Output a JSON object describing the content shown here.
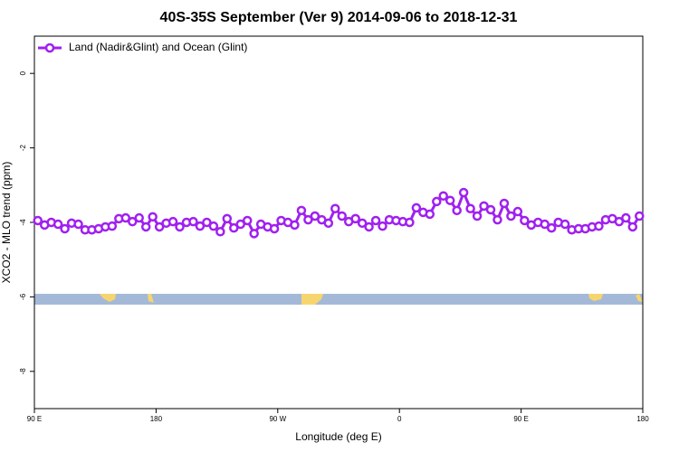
{
  "chart_data": {
    "type": "line",
    "title": "40S-35S September (Ver 9)   2014-09-06 to 2018-12-31",
    "x_label": "Longitude (deg E)",
    "y_label": "XCO2 - MLO trend (ppm)",
    "x": [
      92.5,
      97.5,
      102.5,
      107.5,
      112.5,
      117.5,
      122.5,
      127.5,
      132.5,
      137.5,
      142.5,
      147.5,
      152.5,
      157.5,
      162.5,
      167.5,
      172.5,
      177.5,
      182.5,
      187.5,
      192.5,
      197.5,
      202.5,
      207.5,
      212.5,
      217.5,
      222.5,
      227.5,
      232.5,
      237.5,
      242.5,
      247.5,
      252.5,
      257.5,
      262.5,
      267.5,
      272.5,
      277.5,
      282.5,
      287.5,
      292.5,
      297.5,
      302.5,
      307.5,
      312.5,
      317.5,
      322.5,
      327.5,
      332.5,
      337.5,
      342.5,
      347.5,
      352.5,
      357.5,
      362.5,
      367.5,
      372.5,
      377.5,
      382.5,
      387.5,
      392.5,
      397.5,
      402.5,
      407.5,
      412.5,
      417.5,
      422.5,
      427.5,
      432.5,
      437.5,
      442.5,
      447.5,
      452.5,
      457.5,
      462.5,
      467.5,
      472.5,
      477.5,
      482.5,
      487.5,
      492.5,
      497.5,
      502.5,
      507.5,
      512.5,
      517.5,
      522.5,
      527.5,
      532.5,
      537.5
    ],
    "series": [
      {
        "name": "Land (Nadir&Glint) and Ocean (Glint)",
        "color": "#a020f0",
        "values": [
          -3.95,
          -4.07,
          -4.0,
          -4.05,
          -4.17,
          -4.02,
          -4.05,
          -4.2,
          -4.2,
          -4.17,
          -4.12,
          -4.1,
          -3.9,
          -3.88,
          -3.98,
          -3.88,
          -4.12,
          -3.85,
          -4.12,
          -4.02,
          -3.98,
          -4.12,
          -4.0,
          -3.98,
          -4.1,
          -4.0,
          -4.1,
          -4.25,
          -3.9,
          -4.15,
          -4.05,
          -3.95,
          -4.3,
          -4.05,
          -4.12,
          -4.17,
          -3.95,
          -4.0,
          -4.07,
          -3.68,
          -3.93,
          -3.83,
          -3.93,
          -4.02,
          -3.63,
          -3.83,
          -3.98,
          -3.9,
          -4.02,
          -4.12,
          -3.95,
          -4.1,
          -3.93,
          -3.95,
          -3.98,
          -4.0,
          -3.61,
          -3.73,
          -3.78,
          -3.44,
          -3.29,
          -3.41,
          -3.68,
          -3.2,
          -3.63,
          -3.83,
          -3.56,
          -3.66,
          -3.93,
          -3.49,
          -3.83,
          -3.71,
          -3.95,
          -4.07,
          -4.0,
          -4.05,
          -4.15,
          -4.0,
          -4.05,
          -4.2,
          -4.17,
          -4.17,
          -4.12,
          -4.1,
          -3.93,
          -3.9,
          -3.98,
          -3.88,
          -4.12,
          -3.83
        ]
      }
    ],
    "xlim": [
      90,
      540
    ],
    "xticks": [
      {
        "value": 90,
        "label": "90 E"
      },
      180,
      {
        "value": 270,
        "label": "90 W"
      },
      {
        "value": 360,
        "label": "0"
      },
      {
        "value": 450,
        "label": "90 E"
      },
      {
        "value": 540,
        "label": "180"
      }
    ],
    "ylim": [
      -9,
      1
    ],
    "yticks": [
      0,
      -2,
      -4,
      -6,
      -8
    ],
    "grid": false,
    "legend": "top-left"
  }
}
